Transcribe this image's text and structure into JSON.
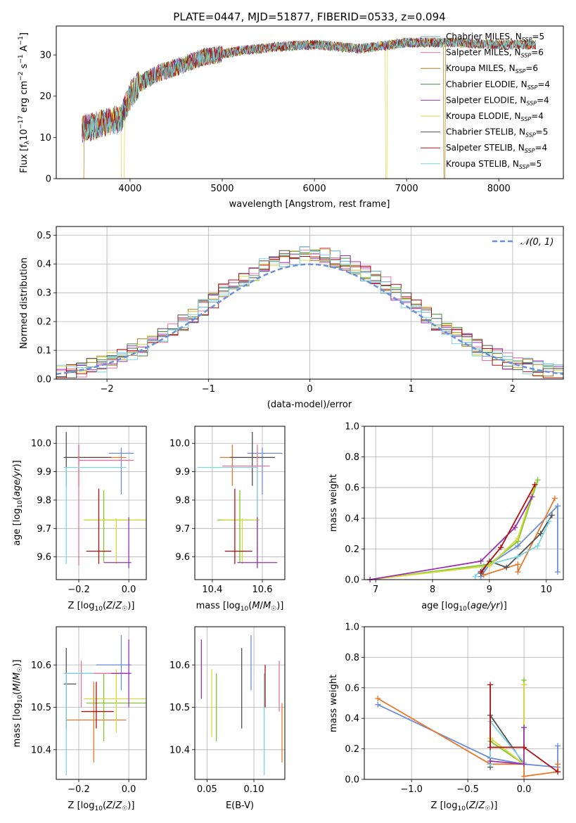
{
  "chart_data": [
    {
      "type": "line",
      "title": "PLATE=0447, MJD=51877, FIBERID=0533, z=0.094",
      "xlabel": "wavelength [Angstrom, rest frame]",
      "ylabel": "Flux [f_λ10^-17 erg cm^-2 s^-1 A^-1]",
      "xlim": [
        3200,
        8700
      ],
      "ylim": [
        0,
        37
      ],
      "xticks": [
        4000,
        5000,
        6000,
        7000,
        8000
      ],
      "yticks": [
        0,
        10,
        20,
        30
      ],
      "legend_position": "top-right",
      "series": [
        {
          "name": "Chabrier MILES, N_SSP=5",
          "color": "#5fa8c8"
        },
        {
          "name": "Salpeter MILES, N_SSP=6",
          "color": "#e8739a"
        },
        {
          "name": "Kroupa MILES, N_SSP=6",
          "color": "#a87a1e"
        },
        {
          "name": "Chabrier ELODIE, N_SSP=4",
          "color": "#3f8a3f"
        },
        {
          "name": "Salpeter ELODIE, N_SSP=4",
          "color": "#9b30b6"
        },
        {
          "name": "Kroupa ELODIE, N_SSP=4",
          "color": "#d8d840"
        },
        {
          "name": "Chabrier STELIB, N_SSP=5",
          "color": "#505050"
        },
        {
          "name": "Salpeter STELIB, N_SSP=4",
          "color": "#b01010"
        },
        {
          "name": "Kroupa STELIB, N_SSP=5",
          "color": "#7ad6e0"
        }
      ],
      "continuum": {
        "x": [
          3500,
          3700,
          3900,
          4000,
          4100,
          4300,
          4500,
          4800,
          5200,
          5600,
          6000,
          6500,
          7000,
          7500,
          8000,
          8400
        ],
        "y": [
          12,
          13.5,
          14.5,
          20,
          23,
          25.5,
          27,
          29.5,
          31,
          32,
          32.5,
          31.5,
          33,
          33,
          32.5,
          32.5
        ]
      }
    },
    {
      "type": "line",
      "xlabel": "(data-model)/error",
      "ylabel": "Normed distribution",
      "xlim": [
        -2.5,
        2.5
      ],
      "ylim": [
        0,
        0.53
      ],
      "xticks": [
        -2,
        -1,
        0,
        1,
        2
      ],
      "yticks": [
        0.0,
        0.1,
        0.2,
        0.3,
        0.4,
        0.5
      ],
      "legend": "𝒩(0, 1)",
      "legend_position": "top-right",
      "gaussian": {
        "mean": 0,
        "sigma": 1
      }
    },
    {
      "type": "scatter",
      "xlabel": "Z [log10(Z/Z☉)]",
      "ylabel": "age  [log10(age/yr)]",
      "xlim": [
        -0.29,
        0.07
      ],
      "ylim": [
        9.52,
        10.06
      ],
      "xticks": [
        -0.2,
        0.0
      ],
      "yticks": [
        9.6,
        9.7,
        9.8,
        9.9,
        10.0
      ],
      "points": [
        {
          "x": -0.03,
          "y": 9.965,
          "xe": [
            -0.08,
            0.02
          ],
          "ye": [
            9.82,
            9.985
          ],
          "color": "#6b8fd8"
        },
        {
          "x": -0.2,
          "y": 9.95,
          "xe": [
            -0.26,
            -0.01
          ],
          "ye": [
            9.85,
            9.995
          ],
          "color": "#e8782a"
        },
        {
          "x": -0.25,
          "y": 9.95,
          "xe": [
            -0.26,
            -0.07
          ],
          "ye": [
            9.85,
            10.04
          ],
          "color": "#505050"
        },
        {
          "x": -0.2,
          "y": 9.94,
          "xe": [
            -0.2,
            0.02
          ],
          "ye": [
            9.57,
            9.995
          ],
          "color": "#e8739a"
        },
        {
          "x": -0.25,
          "y": 9.915,
          "xe": [
            -0.26,
            -0.01
          ],
          "ye": [
            9.575,
            9.915
          ],
          "color": "#7ad6e0"
        },
        {
          "x": -0.1,
          "y": 9.73,
          "xe": [
            -0.18,
            0.07
          ],
          "ye": [
            9.58,
            9.835
          ],
          "color": "#7ec82a"
        },
        {
          "x": -0.05,
          "y": 9.73,
          "xe": [
            -0.18,
            0.07
          ],
          "ye": [
            9.575,
            9.735
          ],
          "color": "#d8d840"
        },
        {
          "x": -0.12,
          "y": 9.62,
          "xe": [
            -0.17,
            -0.07
          ],
          "ye": [
            9.575,
            9.84
          ],
          "color": "#b01010"
        },
        {
          "x": 0.0,
          "y": 9.58,
          "xe": [
            -0.1,
            0.01
          ],
          "ye": [
            9.56,
            9.74
          ],
          "color": "#9b30b6"
        }
      ]
    },
    {
      "type": "scatter",
      "xlabel": "mass [log10(M/M☉)]",
      "xlim": [
        10.33,
        10.69
      ],
      "ylim": [
        9.52,
        10.06
      ],
      "xticks": [
        10.4,
        10.6
      ],
      "yticks": [
        9.6,
        9.7,
        9.8,
        9.9,
        10.0
      ],
      "points": [
        {
          "x": 10.6,
          "y": 9.965,
          "xe": [
            10.54,
            10.68
          ],
          "ye": [
            9.82,
            9.985
          ],
          "color": "#6b8fd8"
        },
        {
          "x": 10.48,
          "y": 9.95,
          "xe": [
            10.43,
            10.65
          ],
          "ye": [
            9.85,
            9.995
          ],
          "color": "#e8782a"
        },
        {
          "x": 10.56,
          "y": 9.95,
          "xe": [
            10.47,
            10.65
          ],
          "ye": [
            9.85,
            10.04
          ],
          "color": "#505050"
        },
        {
          "x": 10.58,
          "y": 9.92,
          "xe": [
            10.44,
            10.63
          ],
          "ye": [
            9.57,
            9.995
          ],
          "color": "#e8739a"
        },
        {
          "x": 10.58,
          "y": 9.915,
          "xe": [
            10.34,
            10.58
          ],
          "ye": [
            9.575,
            9.915
          ],
          "color": "#7ad6e0"
        },
        {
          "x": 10.51,
          "y": 9.73,
          "xe": [
            10.42,
            10.58
          ],
          "ye": [
            9.58,
            9.835
          ],
          "color": "#7ec82a"
        },
        {
          "x": 10.52,
          "y": 9.73,
          "xe": [
            10.44,
            10.59
          ],
          "ye": [
            9.575,
            9.735
          ],
          "color": "#d8d840"
        },
        {
          "x": 10.49,
          "y": 9.62,
          "xe": [
            10.45,
            10.56
          ],
          "ye": [
            9.575,
            9.84
          ],
          "color": "#b01010"
        },
        {
          "x": 10.58,
          "y": 9.58,
          "xe": [
            10.5,
            10.66
          ],
          "ye": [
            9.56,
            9.74
          ],
          "color": "#9b30b6"
        }
      ]
    },
    {
      "type": "line",
      "xlabel": "age  [log10(age/yr)]",
      "ylabel": "mass weight",
      "xlim": [
        6.8,
        10.3
      ],
      "ylim": [
        0,
        1.0
      ],
      "xticks": [
        7,
        8,
        9,
        10
      ],
      "yticks": [
        0.0,
        0.2,
        0.4,
        0.6,
        0.8,
        1.0
      ],
      "series": [
        {
          "color": "#6b8fd8",
          "x": [
            8.85,
            9.0,
            9.5,
            10.2,
            10.2
          ],
          "y": [
            0.02,
            0.1,
            0.22,
            0.48,
            0.05
          ]
        },
        {
          "color": "#e8782a",
          "x": [
            8.9,
            9.5,
            9.5,
            10.15
          ],
          "y": [
            0.03,
            0.1,
            0.05,
            0.53
          ]
        },
        {
          "color": "#505050",
          "x": [
            8.85,
            9.0,
            9.3,
            9.9,
            10.1
          ],
          "y": [
            0.04,
            0.12,
            0.08,
            0.3,
            0.42
          ]
        },
        {
          "color": "#7ad6e0",
          "x": [
            8.75,
            8.9,
            9.5,
            9.85,
            10.05
          ],
          "y": [
            0.02,
            0.09,
            0.15,
            0.22,
            0.38
          ]
        },
        {
          "color": "#7ec82a",
          "x": [
            6.9,
            9.0,
            9.5,
            9.85
          ],
          "y": [
            0.0,
            0.1,
            0.25,
            0.65
          ]
        },
        {
          "color": "#d8d840",
          "x": [
            6.9,
            9.0,
            9.5,
            9.8
          ],
          "y": [
            0.0,
            0.09,
            0.27,
            0.62
          ]
        },
        {
          "color": "#9b30b6",
          "x": [
            6.9,
            8.85,
            9.45,
            9.75
          ],
          "y": [
            0.0,
            0.12,
            0.34,
            0.54
          ]
        },
        {
          "color": "#b01010",
          "x": [
            8.85,
            9.2,
            9.8
          ],
          "y": [
            0.05,
            0.21,
            0.62
          ]
        }
      ]
    },
    {
      "type": "scatter",
      "xlabel": "Z [log10(Z/Z☉)]",
      "ylabel": "mass [log10(M/M☉)]",
      "xlim": [
        -0.29,
        0.07
      ],
      "ylim": [
        10.33,
        10.69
      ],
      "xticks": [
        -0.2,
        0.0
      ],
      "yticks": [
        10.4,
        10.5,
        10.6
      ],
      "points": [
        {
          "x": -0.03,
          "y": 10.6,
          "xe": [
            -0.13,
            0.01
          ],
          "ye": [
            10.54,
            10.67
          ],
          "color": "#6b8fd8"
        },
        {
          "x": -0.14,
          "y": 10.47,
          "xe": [
            -0.25,
            -0.01
          ],
          "ye": [
            10.37,
            10.56
          ],
          "color": "#e8782a"
        },
        {
          "x": -0.25,
          "y": 10.555,
          "xe": [
            -0.26,
            -0.21
          ],
          "ye": [
            10.45,
            10.64
          ],
          "color": "#505050"
        },
        {
          "x": -0.19,
          "y": 10.58,
          "xe": [
            -0.24,
            -0.01
          ],
          "ye": [
            10.5,
            10.61
          ],
          "color": "#e8739a"
        },
        {
          "x": -0.25,
          "y": 10.58,
          "xe": [
            -0.26,
            -0.14
          ],
          "ye": [
            10.34,
            10.58
          ],
          "color": "#7ad6e0"
        },
        {
          "x": -0.1,
          "y": 10.51,
          "xe": [
            -0.17,
            0.07
          ],
          "ye": [
            10.42,
            10.58
          ],
          "color": "#7ec82a"
        },
        {
          "x": -0.05,
          "y": 10.52,
          "xe": [
            -0.18,
            0.07
          ],
          "ye": [
            10.44,
            10.59
          ],
          "color": "#d8d840"
        },
        {
          "x": -0.13,
          "y": 10.49,
          "xe": [
            -0.19,
            -0.06
          ],
          "ye": [
            10.45,
            10.56
          ],
          "color": "#b01010"
        },
        {
          "x": 0.0,
          "y": 10.58,
          "xe": [
            -0.07,
            0.01
          ],
          "ye": [
            10.5,
            10.66
          ],
          "color": "#9b30b6"
        }
      ]
    },
    {
      "type": "scatter",
      "xlabel": "E(B-V)",
      "xlim": [
        0.037,
        0.133
      ],
      "ylim": [
        10.33,
        10.69
      ],
      "xticks": [
        0.05,
        0.1
      ],
      "yticks": [
        10.4,
        10.5,
        10.6
      ],
      "points": [
        {
          "x": 0.097,
          "y": 10.6,
          "ye": [
            10.54,
            10.67
          ],
          "color": "#6b8fd8"
        },
        {
          "x": 0.13,
          "y": 10.47,
          "ye": [
            10.37,
            10.51
          ],
          "color": "#e8782a"
        },
        {
          "x": 0.087,
          "y": 10.555,
          "ye": [
            10.45,
            10.64
          ],
          "color": "#505050"
        },
        {
          "x": 0.127,
          "y": 10.58,
          "ye": [
            10.49,
            10.61
          ],
          "color": "#e8739a"
        },
        {
          "x": 0.111,
          "y": 10.5,
          "ye": [
            10.34,
            10.58
          ],
          "color": "#7ad6e0"
        },
        {
          "x": 0.06,
          "y": 10.51,
          "ye": [
            10.42,
            10.58
          ],
          "color": "#7ec82a"
        },
        {
          "x": 0.055,
          "y": 10.5,
          "ye": [
            10.43,
            10.59
          ],
          "color": "#d8d840"
        },
        {
          "x": 0.112,
          "y": 10.57,
          "ye": [
            10.5,
            10.6
          ],
          "color": "#b01010"
        },
        {
          "x": 0.044,
          "y": 10.6,
          "ye": [
            10.52,
            10.66
          ],
          "color": "#9b30b6"
        }
      ]
    },
    {
      "type": "line",
      "xlabel": "Z [log10(Z/Z☉)]",
      "ylabel": "mass weight",
      "xlim": [
        -1.42,
        0.35
      ],
      "ylim": [
        0,
        1.0
      ],
      "xticks": [
        -1.0,
        -0.5,
        0.0
      ],
      "yticks": [
        0.0,
        0.2,
        0.4,
        0.6,
        0.8,
        1.0
      ],
      "series": [
        {
          "color": "#6b8fd8",
          "x": [
            -1.3,
            -0.3,
            0.0,
            0.3,
            0.3
          ],
          "y": [
            0.49,
            0.14,
            0.1,
            0.08,
            0.22
          ]
        },
        {
          "color": "#e8782a",
          "x": [
            -1.3,
            -0.3,
            0.0,
            0.0,
            0.3,
            0.3
          ],
          "y": [
            0.53,
            0.1,
            0.1,
            0.02,
            0.05,
            0.1
          ]
        },
        {
          "color": "#505050",
          "x": [
            -0.3,
            -0.3,
            0.0
          ],
          "y": [
            0.08,
            0.42,
            0.1
          ]
        },
        {
          "color": "#7ad6e0",
          "x": [
            -0.3,
            -0.3,
            0.0
          ],
          "y": [
            0.1,
            0.38,
            0.11
          ]
        },
        {
          "color": "#7ec82a",
          "x": [
            -0.3,
            0.0,
            0.0
          ],
          "y": [
            0.25,
            0.1,
            0.65
          ]
        },
        {
          "color": "#d8d840",
          "x": [
            -0.3,
            0.0,
            0.0
          ],
          "y": [
            0.27,
            0.1,
            0.62
          ]
        },
        {
          "color": "#9b30b6",
          "x": [
            -0.3,
            0.0,
            0.0
          ],
          "y": [
            0.12,
            0.1,
            0.34
          ]
        },
        {
          "color": "#b01010",
          "x": [
            -0.3,
            -0.3,
            0.0,
            0.3
          ],
          "y": [
            0.62,
            0.21,
            0.21,
            0.05
          ]
        }
      ]
    }
  ]
}
